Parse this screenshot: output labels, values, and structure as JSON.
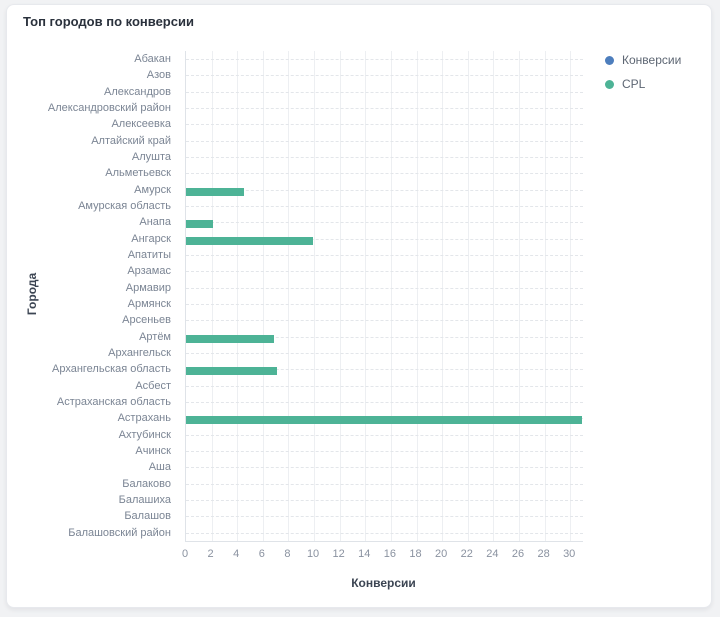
{
  "card": {
    "title": "Топ городов по конверсии"
  },
  "legend": {
    "items": [
      {
        "label": "Конверсии",
        "color": "#4d7ebd"
      },
      {
        "label": "CPL",
        "color": "#4db396"
      }
    ]
  },
  "chart_data": {
    "type": "bar",
    "orientation": "horizontal",
    "title": "Топ городов по конверсии",
    "xlabel": "Конверсии",
    "ylabel": "Города",
    "legend_position": "top-right",
    "grid": {
      "vertical": "solid",
      "horizontal": "dashed-per-category"
    },
    "xlim": [
      0,
      31
    ],
    "xticks": [
      0,
      2,
      4,
      6,
      8,
      10,
      12,
      14,
      16,
      18,
      20,
      22,
      24,
      26,
      28,
      30
    ],
    "categories": [
      "Абакан",
      "Азов",
      "Александров",
      "Александровский район",
      "Алексеевка",
      "Алтайский край",
      "Алушта",
      "Альметьевск",
      "Амурск",
      "Амурская область",
      "Анапа",
      "Ангарск",
      "Апатиты",
      "Арзамас",
      "Армавир",
      "Армянск",
      "Арсеньев",
      "Артём",
      "Архангельск",
      "Архангельская область",
      "Асбест",
      "Астраханская область",
      "Астрахань",
      "Ахтубинск",
      "Ачинск",
      "Аша",
      "Балаково",
      "Балашиха",
      "Балашов",
      "Балашовский район"
    ],
    "series": [
      {
        "name": "Конверсии",
        "color": "#4d7ebd",
        "values": [
          0,
          0,
          0,
          0,
          0,
          0,
          0,
          0,
          0,
          0,
          0,
          0,
          0,
          0,
          0,
          0,
          0,
          0,
          0,
          0,
          0,
          0,
          0,
          0,
          0,
          0,
          0,
          0,
          0,
          0
        ]
      },
      {
        "name": "CPL",
        "color": "#4db396",
        "values": [
          0,
          0,
          0,
          0,
          0,
          0,
          0,
          0,
          4.5,
          0,
          2.1,
          9.9,
          0,
          0,
          0,
          0,
          0,
          6.9,
          0,
          7.1,
          0,
          0,
          30.9,
          0,
          0,
          0,
          0,
          0,
          0,
          0
        ]
      }
    ]
  }
}
